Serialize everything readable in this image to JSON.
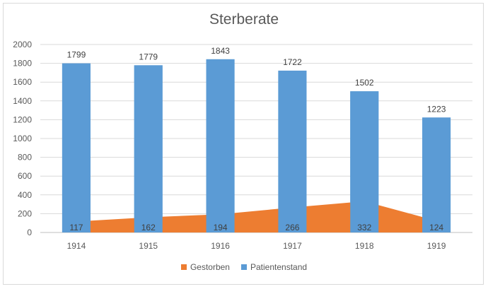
{
  "chart_data": {
    "type": "bar",
    "title": "Sterberate",
    "categories": [
      "1914",
      "1915",
      "1916",
      "1917",
      "1918",
      "1919"
    ],
    "series": [
      {
        "name": "Gestorben",
        "type": "area",
        "color": "#ed7d31",
        "values": [
          117,
          162,
          194,
          266,
          332,
          124
        ]
      },
      {
        "name": "Patientenstand",
        "type": "bar",
        "color": "#5b9bd5",
        "values": [
          1799,
          1779,
          1843,
          1722,
          1502,
          1223
        ]
      }
    ],
    "yticks": [
      "0",
      "200",
      "400",
      "600",
      "800",
      "1000",
      "1200",
      "1400",
      "1600",
      "1800",
      "2000"
    ],
    "ylim": [
      0,
      2000
    ],
    "grid": true,
    "legend": "bottom"
  }
}
